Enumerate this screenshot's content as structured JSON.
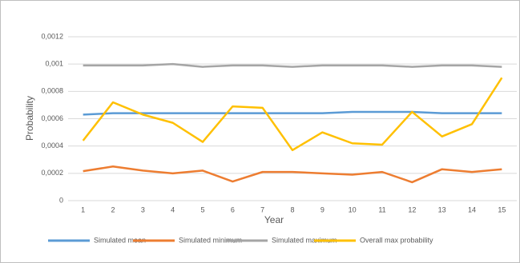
{
  "chart_data": {
    "type": "line",
    "x_label": "Year",
    "y_label": "Probability",
    "categories": [
      1,
      2,
      3,
      4,
      5,
      6,
      7,
      8,
      9,
      10,
      11,
      12,
      13,
      14,
      15
    ],
    "series": [
      {
        "name": "Simulated mean",
        "color": "#5b9bd5",
        "values": [
          0.00063,
          0.00064,
          0.00064,
          0.00064,
          0.00064,
          0.00064,
          0.00064,
          0.00064,
          0.00064,
          0.00065,
          0.00065,
          0.00065,
          0.00064,
          0.00064,
          0.00064
        ]
      },
      {
        "name": "Simulated minimum",
        "color": "#ed7d31",
        "values": [
          0.000216,
          0.00025,
          0.00022,
          0.0002,
          0.00022,
          0.00014,
          0.00021,
          0.00021,
          0.0002,
          0.00019,
          0.00021,
          0.000135,
          0.00023,
          0.00021,
          0.00023
        ]
      },
      {
        "name": "Simulated maximum",
        "color": "#a5a5a5",
        "values": [
          0.00099,
          0.00099,
          0.00099,
          0.001,
          0.00098,
          0.00099,
          0.00099,
          0.00098,
          0.00099,
          0.00099,
          0.00099,
          0.00098,
          0.00099,
          0.00099,
          0.00098
        ]
      },
      {
        "name": "Overall max probability",
        "color": "#ffc000",
        "values": [
          0.00044,
          0.00072,
          0.00063,
          0.00057,
          0.00043,
          0.00069,
          0.00068,
          0.00037,
          0.0005,
          0.00042,
          0.00041,
          0.00065,
          0.00047,
          0.00056,
          0.0009
        ]
      }
    ],
    "ylim": [
      0,
      0.0012
    ],
    "yticks": [
      0,
      {
        "value": 0.0002,
        "label": "0,0002"
      },
      {
        "value": 0.0004,
        "label": "0,0004"
      },
      {
        "value": 0.0006,
        "label": "0,0006"
      },
      {
        "value": 0.0008,
        "label": "0,0008"
      },
      {
        "value": 0.001,
        "label": "0,001"
      },
      {
        "value": 0.0012,
        "label": "0,0012"
      }
    ],
    "grid": true,
    "legend": "bottom"
  }
}
